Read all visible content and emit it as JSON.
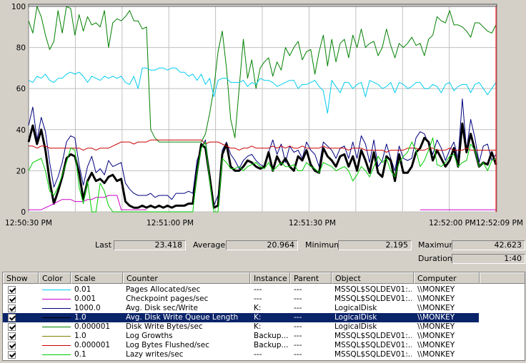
{
  "chart_data": {
    "type": "line",
    "ylim": [
      0,
      100
    ],
    "yticks": [
      "100",
      "80",
      "60",
      "40",
      "20",
      "0"
    ],
    "xtick_labels": [
      "12:50:30 PM",
      "12:51:00 PM",
      "12:51:30 PM",
      "12:52:00 PM",
      "12:52:09 PM"
    ],
    "grid": true,
    "series": [
      {
        "color": "#008000",
        "width": 1,
        "values": [
          93,
          87,
          100,
          95,
          86,
          79,
          83,
          98,
          87,
          100,
          99,
          86,
          96,
          88,
          95,
          91,
          92,
          90,
          98,
          80,
          92,
          94,
          93,
          95,
          98,
          93,
          93,
          89,
          90,
          40,
          36,
          34,
          34,
          34,
          34,
          34,
          34,
          34,
          34,
          34,
          34,
          34,
          38,
          48,
          60,
          78,
          88,
          70,
          45,
          36,
          60,
          84,
          65,
          74,
          60,
          70,
          73,
          75,
          66,
          73,
          69,
          80,
          76,
          80,
          83,
          74,
          78,
          79,
          67,
          78,
          86,
          71,
          84,
          73,
          82,
          84,
          75,
          86,
          80,
          89,
          80,
          82,
          83,
          76,
          80,
          89,
          81,
          75,
          82,
          80,
          82,
          85,
          81,
          82,
          76,
          84,
          86,
          95,
          93,
          92,
          98,
          91,
          91,
          90,
          88,
          85,
          92,
          92,
          90,
          88,
          87,
          91
        ]
      },
      {
        "color": "#00ccee",
        "width": 1,
        "values": [
          64,
          63,
          66,
          65,
          67,
          64,
          63,
          65,
          65,
          67,
          68,
          67,
          68,
          66,
          63,
          66,
          65,
          64,
          66,
          65,
          66,
          65,
          66,
          63,
          62,
          66,
          60,
          70,
          70,
          69,
          69,
          70,
          70,
          69,
          70,
          70,
          68,
          68,
          66,
          67,
          64,
          67,
          62,
          65,
          56,
          64,
          65,
          65,
          63,
          63,
          63,
          64,
          61,
          63,
          62,
          65,
          64,
          64,
          63,
          61,
          62,
          63,
          64,
          64,
          60,
          62,
          62,
          63,
          64,
          61,
          59,
          48,
          64,
          61,
          58,
          63,
          63,
          60,
          62,
          63,
          56,
          64,
          63,
          62,
          60,
          61,
          63,
          58,
          63,
          62,
          60,
          61,
          63,
          63,
          60,
          60,
          62,
          61,
          58,
          62,
          63,
          59,
          61,
          62,
          62,
          58,
          62,
          63,
          60,
          57,
          60,
          63
        ]
      },
      {
        "color": "#000080",
        "width": 1,
        "values": [
          42,
          51,
          35,
          46,
          39,
          24,
          12,
          17,
          24,
          34,
          37,
          36,
          23,
          13,
          22,
          27,
          19,
          21,
          18,
          25,
          22,
          23,
          24,
          14,
          11,
          9,
          8,
          8,
          8,
          9,
          7,
          8,
          8,
          8,
          6,
          9,
          9,
          9,
          10,
          9,
          25,
          31,
          35,
          18,
          3,
          8,
          30,
          34,
          28,
          25,
          21,
          25,
          27,
          28,
          25,
          23,
          22,
          29,
          35,
          28,
          33,
          24,
          32,
          29,
          30,
          26,
          34,
          30,
          28,
          22,
          34,
          32,
          30,
          26,
          31,
          32,
          26,
          34,
          26,
          37,
          33,
          24,
          35,
          22,
          25,
          33,
          26,
          20,
          32,
          26,
          25,
          26,
          36,
          39,
          38,
          33,
          28,
          35,
          31,
          25,
          30,
          34,
          26,
          55,
          30,
          45,
          36,
          24,
          32,
          33,
          25,
          28
        ]
      },
      {
        "color": "#000000",
        "width": 3,
        "values": [
          34,
          42,
          33,
          40,
          30,
          15,
          4,
          10,
          17,
          26,
          28,
          27,
          19,
          6,
          15,
          19,
          15,
          16,
          14,
          17,
          18,
          15,
          16,
          5,
          3,
          2,
          2,
          3,
          2,
          3,
          2,
          3,
          2,
          3,
          2,
          3,
          3,
          3,
          4,
          4,
          20,
          33,
          31,
          17,
          2,
          3,
          28,
          33,
          22,
          20,
          20,
          22,
          25,
          24,
          22,
          21,
          22,
          29,
          20,
          27,
          23,
          26,
          22,
          20,
          27,
          25,
          30,
          23,
          20,
          19,
          31,
          27,
          25,
          22,
          27,
          28,
          22,
          27,
          20,
          30,
          25,
          19,
          29,
          19,
          17,
          27,
          25,
          15,
          28,
          19,
          19,
          22,
          29,
          31,
          36,
          34,
          25,
          30,
          26,
          22,
          25,
          31,
          22,
          43,
          29,
          38,
          30,
          22,
          24,
          23,
          29,
          23
        ]
      },
      {
        "color": "#cc00cc",
        "width": 1,
        "values": [
          1,
          1,
          1,
          1,
          2,
          3,
          4,
          5,
          6,
          6,
          6,
          5,
          5,
          5,
          6,
          6,
          7,
          7,
          7,
          8,
          8,
          8,
          1,
          1,
          1,
          1,
          1,
          1,
          1,
          null,
          null,
          null,
          null,
          null,
          null,
          null,
          null,
          null,
          null,
          null,
          null,
          null,
          null,
          null,
          null,
          null,
          null,
          null,
          null,
          null,
          null,
          null,
          null,
          null,
          null,
          null,
          null,
          null,
          null,
          null,
          null,
          null,
          null,
          null,
          null,
          null,
          null,
          null,
          null,
          null,
          null,
          null,
          null,
          null,
          null,
          null,
          null,
          null,
          null,
          null,
          null,
          null,
          null,
          null,
          null,
          null,
          null,
          null,
          null,
          null,
          null,
          null,
          null,
          1,
          1,
          1,
          1,
          1,
          1,
          1,
          1,
          1,
          1,
          1,
          1,
          1,
          1,
          1,
          1,
          1,
          1,
          1
        ]
      },
      {
        "color": "#cc0000",
        "width": 1,
        "values": [
          32,
          32,
          31,
          32,
          32,
          31,
          31,
          31,
          31,
          31,
          31,
          31,
          31,
          30,
          31,
          31,
          30,
          31,
          31,
          31,
          32,
          33,
          34,
          34,
          34,
          33,
          34,
          34,
          34,
          35,
          35,
          35,
          35,
          35,
          35,
          35,
          35,
          35,
          35,
          35,
          35,
          35,
          33,
          34,
          34,
          34,
          33,
          32,
          31,
          31,
          30,
          31,
          31,
          32,
          31,
          31,
          31,
          31,
          32,
          31,
          32,
          31,
          32,
          31,
          31,
          32,
          31,
          31,
          31,
          31,
          32,
          31,
          31,
          31,
          31,
          31,
          30,
          31,
          31,
          31,
          30,
          30,
          30,
          30,
          30,
          29,
          30,
          30,
          30,
          30,
          31,
          31,
          31,
          30,
          30,
          31,
          31,
          30,
          30,
          30,
          31,
          30,
          30,
          30,
          31,
          30,
          30,
          30,
          30,
          30,
          30,
          30
        ]
      },
      {
        "color": "#00cc00",
        "width": 1,
        "values": [
          20,
          24,
          25,
          26,
          20,
          10,
          8,
          12,
          18,
          24,
          31,
          30,
          12,
          4,
          15,
          0,
          0,
          14,
          10,
          3,
          0,
          0,
          0,
          0,
          0,
          0,
          0,
          0,
          0,
          0,
          0,
          0,
          0,
          0,
          0,
          0,
          0,
          0,
          0,
          0,
          19,
          31,
          34,
          15,
          0,
          0,
          26,
          24,
          21,
          21,
          22,
          20,
          22,
          23,
          24,
          22,
          21,
          24,
          20,
          22,
          24,
          22,
          22,
          23,
          20,
          20,
          24,
          22,
          21,
          19,
          24,
          23,
          22,
          20,
          21,
          22,
          20,
          15,
          18,
          22,
          20,
          17,
          22,
          27,
          24,
          26,
          20,
          17,
          24,
          27,
          29,
          34,
          30,
          22,
          25,
          30,
          36,
          23,
          22,
          24,
          27,
          28,
          22,
          24,
          25,
          33,
          30,
          22,
          24,
          20,
          25,
          26
        ]
      },
      {
        "color": "#808000",
        "width": 1,
        "values": [
          null,
          null,
          null,
          null,
          null,
          null,
          null,
          null,
          null,
          null,
          null,
          null,
          null,
          null,
          null,
          null,
          null,
          null,
          null,
          null,
          null,
          null,
          null,
          null,
          null,
          null,
          null,
          null,
          null,
          null,
          null,
          null,
          null,
          null,
          null,
          null,
          null,
          null,
          null,
          null,
          null,
          null,
          null,
          null,
          null,
          null,
          null,
          null,
          null,
          null,
          null,
          null,
          null,
          null,
          null,
          null,
          null,
          null,
          null,
          null,
          null,
          null,
          null,
          null,
          null,
          null,
          null,
          null,
          null,
          null,
          null,
          null,
          null,
          null,
          null,
          null,
          null,
          null,
          null,
          null,
          null,
          null,
          null,
          null,
          null,
          null,
          null,
          null,
          null,
          null,
          null,
          null,
          null,
          null,
          null,
          null,
          null,
          null,
          null,
          null,
          null,
          null,
          null,
          null,
          null,
          null,
          null,
          null,
          null,
          null,
          null,
          null
        ]
      }
    ]
  },
  "stats": {
    "last_label": "Last",
    "last_value": "23.418",
    "average_label": "Average",
    "average_value": "20.964",
    "minimum_label": "Minimum",
    "minimum_value": "2.195",
    "maximum_label": "Maximum",
    "maximum_value": "42.623",
    "duration_label": "Duration",
    "duration_value": "1:40"
  },
  "table": {
    "headers": [
      "Show",
      "Color",
      "Scale",
      "Counter",
      "Instance",
      "Parent",
      "Object",
      "Computer"
    ],
    "rows": [
      {
        "color": "#00ccee",
        "scale": "0.01",
        "counter": "Pages Allocated/sec",
        "instance": "---",
        "parent": "---",
        "object": "MSSQL$SQLDEV01:...",
        "computer": "\\\\MONKEY"
      },
      {
        "color": "#cc00cc",
        "scale": "0.001",
        "counter": "Checkpoint pages/sec",
        "instance": "---",
        "parent": "---",
        "object": "MSSQL$SQLDEV01:...",
        "computer": "\\\\MONKEY"
      },
      {
        "color": "#000080",
        "scale": "1000.0",
        "counter": "Avg. Disk sec/Write",
        "instance": "K:",
        "parent": "---",
        "object": "LogicalDisk",
        "computer": "\\\\MONKEY"
      },
      {
        "color": "#000000",
        "scale": "1.0",
        "counter": "Avg. Disk Write Queue Length",
        "instance": "K:",
        "parent": "---",
        "object": "LogicalDisk",
        "computer": "\\\\MONKEY",
        "selected": true
      },
      {
        "color": "#008000",
        "scale": "0.000001",
        "counter": "Disk Write Bytes/sec",
        "instance": "K:",
        "parent": "---",
        "object": "LogicalDisk",
        "computer": "\\\\MONKEY"
      },
      {
        "color": "#808000",
        "scale": "1.0",
        "counter": "Log Growths",
        "instance": "Backup...",
        "parent": "---",
        "object": "MSSQL$SQLDEV01:...",
        "computer": "\\\\MONKEY"
      },
      {
        "color": "#cc0000",
        "scale": "0.000001",
        "counter": "Log Bytes Flushed/sec",
        "instance": "Backup...",
        "parent": "---",
        "object": "MSSQL$SQLDEV01:...",
        "computer": "\\\\MONKEY"
      },
      {
        "color": "#00cc00",
        "scale": "0.1",
        "counter": "Lazy writes/sec",
        "instance": "---",
        "parent": "---",
        "object": "MSSQL$SQLDEV01:...",
        "computer": "\\\\MONKEY"
      }
    ]
  }
}
